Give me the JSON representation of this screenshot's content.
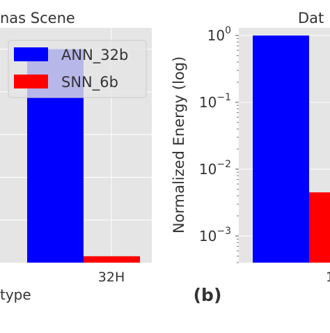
{
  "chart_data": [
    {
      "type": "bar",
      "title": "nas Scene",
      "xlabel": "type",
      "ylabel": "",
      "categories": [
        "32H"
      ],
      "series": [
        {
          "name": "ANN_32b",
          "values": [
            1.0
          ],
          "color": "#0000ff"
        },
        {
          "name": "SNN_6b",
          "values": [
            0.03
          ],
          "color": "#ff0000"
        }
      ],
      "ylim": [
        0,
        1.1
      ],
      "grid": true,
      "legend": "top-right",
      "background": "#e5e5e5",
      "cropped": "left edge of the image"
    },
    {
      "type": "bar",
      "title": "Dat",
      "xlabel": "",
      "ylabel": "Normalized Energy (log)",
      "yscale": "log",
      "ylim": [
        0.0004,
        1.3
      ],
      "yticks": [
        {
          "base": "10",
          "exp": "0",
          "value": 1
        },
        {
          "base": "10",
          "exp": "−1",
          "value": 0.1
        },
        {
          "base": "10",
          "exp": "−2",
          "value": 0.01
        },
        {
          "base": "10",
          "exp": "−3",
          "value": 0.001
        }
      ],
      "series": [
        {
          "name": "ANN_32b",
          "values": [
            1.0
          ],
          "color": "#0000ff"
        },
        {
          "name": "SNN_6b",
          "values": [
            0.0045
          ],
          "color": "#ff0000"
        }
      ],
      "partial_tick_label": "1",
      "grid": true,
      "background": "#e5e5e5",
      "cropped": "right edge of the image"
    }
  ],
  "panel_label": "(b)"
}
